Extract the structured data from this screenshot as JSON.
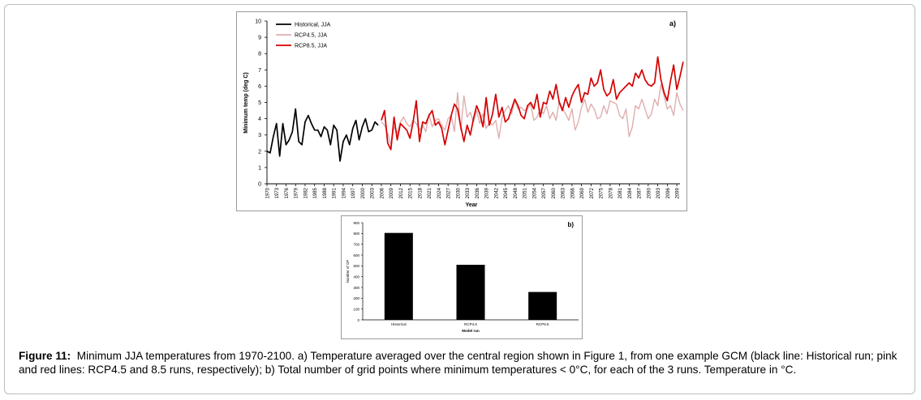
{
  "figure": {
    "label": "Figure 11:",
    "caption": "Minimum JJA temperatures from 1970-2100. a) Temperature averaged over the central region shown in Figure 1, from one example GCM (black line: Historical run; pink and red lines: RCP4.5 and 8.5 runs, respectively); b) Total number of grid points where minimum temperatures < 0°C, for each of the 3 runs. Temperature in °C."
  },
  "colors": {
    "historical": "#000000",
    "rcp45": "#e0aeae",
    "rcp85": "#d40000",
    "bar": "#000000"
  },
  "chart_data": [
    {
      "type": "line",
      "panel_label": "a)",
      "title": "",
      "xlabel": "Year",
      "ylabel": "Minimum temp (deg C)",
      "ylim": [
        0,
        10
      ],
      "yticks": [
        "0",
        "1",
        "2",
        "3",
        "4",
        "5",
        "6",
        "7",
        "8",
        "9",
        "10"
      ],
      "xlim": [
        1970,
        2100
      ],
      "xticks": [
        "1970",
        "1973",
        "1976",
        "1979",
        "1982",
        "1985",
        "1988",
        "1991",
        "1994",
        "1997",
        "2000",
        "2003",
        "2006",
        "2009",
        "2012",
        "2015",
        "2018",
        "2021",
        "2024",
        "2027",
        "2030",
        "2033",
        "2036",
        "2039",
        "2042",
        "2045",
        "2048",
        "2051",
        "2054",
        "2057",
        "2060",
        "2063",
        "2066",
        "2069",
        "2072",
        "2075",
        "2078",
        "2081",
        "2084",
        "2087",
        "2090",
        "2093",
        "2096",
        "2099"
      ],
      "legend_position": "top-left",
      "series": [
        {
          "name": "Historical, JJA",
          "x_start": 1970,
          "values": [
            2.0,
            1.9,
            2.9,
            3.7,
            1.7,
            3.7,
            2.4,
            2.7,
            3.2,
            4.6,
            2.6,
            2.4,
            3.8,
            4.2,
            3.7,
            3.3,
            3.3,
            2.9,
            3.5,
            3.3,
            2.4,
            3.6,
            3.3,
            1.4,
            2.6,
            3.0,
            2.4,
            3.4,
            3.9,
            2.7,
            3.5,
            4.0,
            3.2,
            3.3,
            3.8,
            3.6
          ]
        },
        {
          "name": "RCP4.5, JJA",
          "x_start": 2006,
          "values": [
            3.8,
            3.6,
            3.1,
            2.4,
            3.5,
            3.1,
            3.8,
            4.1,
            3.7,
            3.5,
            3.9,
            3.7,
            3.3,
            3.6,
            3.2,
            4.3,
            3.5,
            3.9,
            4.0,
            3.6,
            3.3,
            4.0,
            4.2,
            3.2,
            5.6,
            3.3,
            5.4,
            4.1,
            4.4,
            3.8,
            4.5,
            3.7,
            4.3,
            3.4,
            3.8,
            3.6,
            3.9,
            2.8,
            4.1,
            4.5,
            4.8,
            4.3,
            5.1,
            4.6,
            4.7,
            4.5,
            4.6,
            4.9,
            3.9,
            4.1,
            4.6,
            4.3,
            4.8,
            4.0,
            4.4,
            3.9,
            5.1,
            4.6,
            4.3,
            3.9,
            4.6,
            3.3,
            3.8,
            4.7,
            5.2,
            4.4,
            4.9,
            4.6,
            4.0,
            4.1,
            4.8,
            4.3,
            5.1,
            5.0,
            4.9,
            4.2,
            4.0,
            4.6,
            2.9,
            3.5,
            4.8,
            4.6,
            5.2,
            4.6,
            4.0,
            4.3,
            5.2,
            4.8,
            6.1,
            5.4,
            4.6,
            4.8,
            4.2,
            5.6,
            4.9,
            4.5
          ]
        },
        {
          "name": "RCP8.5, JJA",
          "x_start": 2006,
          "values": [
            3.9,
            4.5,
            2.5,
            2.1,
            4.1,
            2.7,
            3.7,
            3.5,
            3.3,
            2.8,
            3.8,
            5.1,
            2.6,
            3.8,
            3.7,
            4.2,
            4.5,
            3.6,
            3.8,
            3.4,
            2.4,
            3.3,
            4.2,
            4.9,
            4.6,
            3.5,
            2.6,
            3.6,
            3.0,
            4.0,
            4.8,
            4.3,
            3.5,
            5.3,
            3.6,
            4.3,
            5.5,
            4.1,
            4.7,
            3.8,
            4.0,
            4.6,
            5.2,
            4.8,
            4.2,
            4.0,
            4.8,
            5.0,
            4.6,
            5.5,
            4.1,
            5.0,
            4.9,
            5.7,
            5.2,
            6.1,
            5.0,
            4.5,
            5.3,
            4.7,
            5.4,
            5.8,
            6.1,
            5.0,
            5.6,
            5.5,
            6.5,
            6.0,
            6.2,
            7.0,
            5.8,
            5.4,
            5.6,
            6.4,
            5.2,
            5.6,
            5.8,
            6.0,
            6.2,
            6.0,
            6.8,
            6.5,
            7.0,
            6.4,
            6.1,
            6.0,
            6.2,
            7.8,
            6.4,
            5.6,
            5.1,
            6.3,
            7.3,
            5.8,
            6.6,
            7.5
          ]
        }
      ]
    },
    {
      "type": "bar",
      "panel_label": "b)",
      "title": "",
      "xlabel": "Model run",
      "ylabel": "Number of GP",
      "categories": [
        "Historical",
        "RCP4.5",
        "RCP8.5"
      ],
      "values": [
        805,
        510,
        258
      ],
      "ylim": [
        0,
        900
      ],
      "yticks": [
        "0",
        "100",
        "200",
        "300",
        "400",
        "500",
        "600",
        "700",
        "800",
        "900"
      ]
    }
  ]
}
